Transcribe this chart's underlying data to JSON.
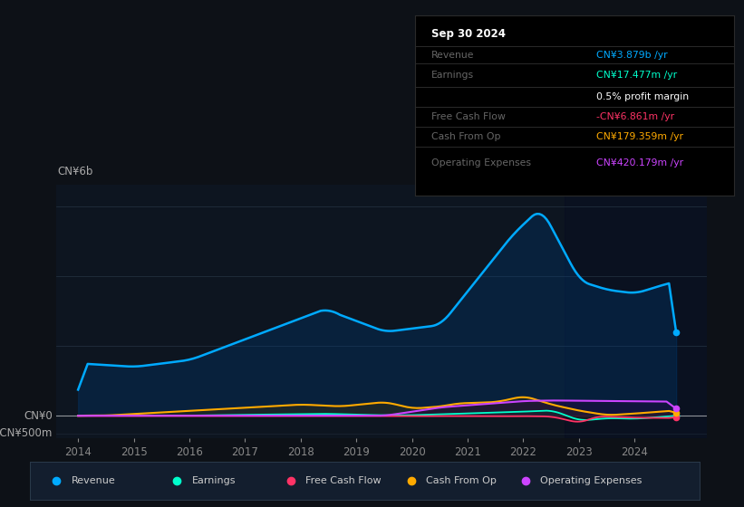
{
  "bg_color": "#0d1117",
  "plot_bg_color": "#0d1520",
  "title": "Sep 30 2024",
  "info_rows": [
    {
      "label": "Revenue",
      "value": "CN¥3.879b /yr",
      "value_color": "#00aaff"
    },
    {
      "label": "Earnings",
      "value": "CN¥17.477m /yr",
      "value_color": "#00ffcc"
    },
    {
      "label": "",
      "value": "0.5% profit margin",
      "value_color": "#ffffff"
    },
    {
      "label": "Free Cash Flow",
      "value": "-CN¥6.861m /yr",
      "value_color": "#ff3366"
    },
    {
      "label": "Cash From Op",
      "value": "CN¥179.359m /yr",
      "value_color": "#ffaa00"
    },
    {
      "label": "Operating Expenses",
      "value": "CN¥420.179m /yr",
      "value_color": "#cc44ff"
    }
  ],
  "ylabel_top": "CN¥6b",
  "ylabel_zero": "CN¥0",
  "ylabel_neg": "-CN¥500m",
  "revenue_color": "#00aaff",
  "earnings_color": "#00ffcc",
  "fcf_color": "#ff3366",
  "cashfromop_color": "#ffaa00",
  "opex_color": "#cc44ff",
  "legend_items": [
    {
      "label": "Revenue",
      "color": "#00aaff"
    },
    {
      "label": "Earnings",
      "color": "#00ffcc"
    },
    {
      "label": "Free Cash Flow",
      "color": "#ff3366"
    },
    {
      "label": "Cash From Op",
      "color": "#ffaa00"
    },
    {
      "label": "Operating Expenses",
      "color": "#cc44ff"
    }
  ]
}
